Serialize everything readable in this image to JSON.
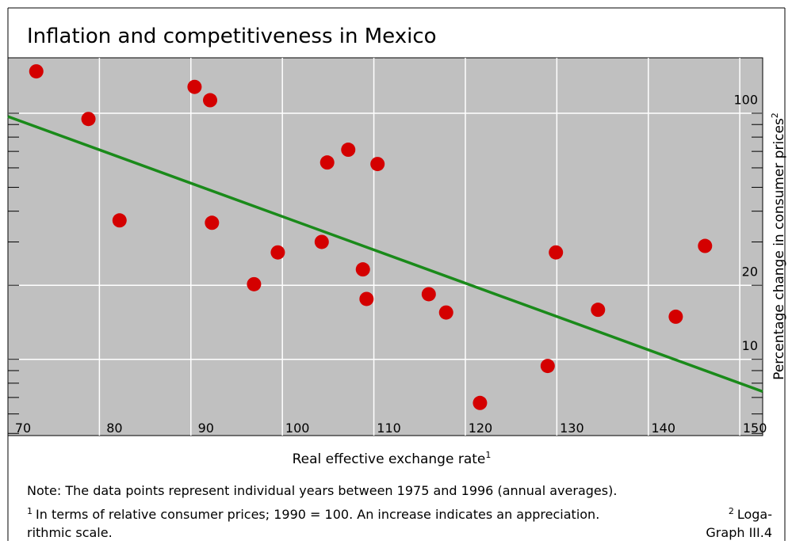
{
  "chart_data": {
    "type": "scatter",
    "title": "Inflation and competitiveness in Mexico",
    "x_label": "Real effective exchange rate",
    "x_label_note": "1",
    "y_label": "Percentage change in consumer prices",
    "y_label_note": "2",
    "x": [
      73.1,
      78.8,
      82.2,
      90.4,
      92.1,
      92.3,
      96.9,
      99.5,
      104.3,
      104.9,
      107.2,
      110.4,
      108.8,
      109.2,
      116.0,
      117.9,
      121.6,
      129.0,
      129.9,
      134.5,
      143.0,
      146.2
    ],
    "values": [
      148,
      94.8,
      36.7,
      128,
      113,
      35.9,
      20.2,
      27.2,
      30.0,
      63.1,
      71.1,
      62.2,
      23.2,
      17.6,
      18.4,
      15.5,
      6.65,
      9.4,
      27.2,
      15.9,
      14.9,
      28.9
    ],
    "color": "#d40000",
    "trend": {
      "x": [
        70,
        152.5
      ],
      "values": [
        97,
        7.4
      ],
      "color": "#1a8a1a"
    },
    "xlim": [
      70,
      152.5
    ],
    "xticks": [
      70,
      80,
      90,
      100,
      110,
      120,
      130,
      140,
      150
    ],
    "ylim": [
      4.9,
      168
    ],
    "yticks": [
      10,
      20,
      100
    ],
    "yminor": [
      5,
      6,
      7,
      8,
      9,
      30,
      40,
      50,
      60,
      70,
      80,
      90
    ],
    "y_scale": "log",
    "grid": true,
    "note": "Note: The data points represent individual years between 1975 and 1996 (annual averages).",
    "footnote1_marker": "1",
    "footnote1": "In terms of relative consumer prices; 1990 = 100. An increase indicates an appreciation.",
    "footnote2_marker": "2",
    "footnote2": [
      "Loga-",
      "rithmic scale."
    ],
    "source": "Graph III.4"
  }
}
